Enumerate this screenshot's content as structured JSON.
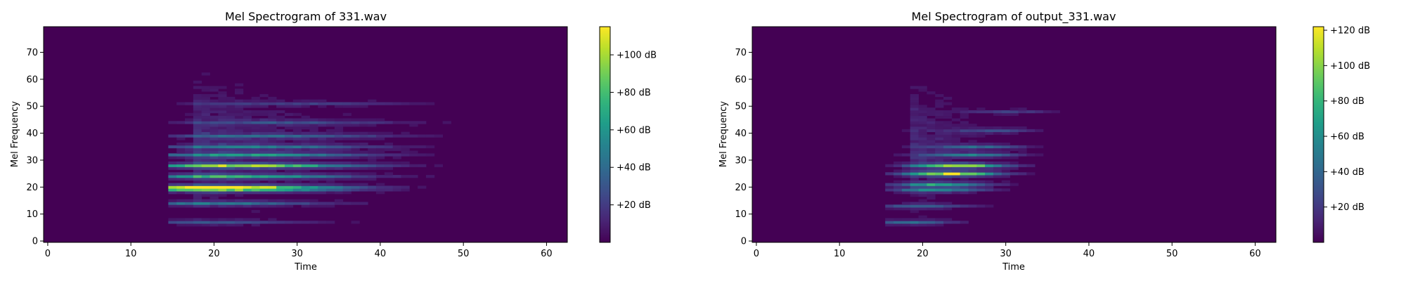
{
  "chart_data": [
    {
      "type": "heatmap",
      "title": "Mel Spectrogram of 331.wav",
      "xlabel": "Time",
      "ylabel": "Mel Frequency",
      "xlim": [
        -0.5,
        62.5
      ],
      "ylim": [
        -0.5,
        79.5
      ],
      "x_ticks": [
        0,
        10,
        20,
        30,
        40,
        50,
        60
      ],
      "y_ticks": [
        0,
        10,
        20,
        30,
        40,
        50,
        60,
        70
      ],
      "colorbar": {
        "colormap": "viridis",
        "range": [
          0,
          115
        ],
        "ticks": [
          20,
          40,
          60,
          80,
          100
        ],
        "tick_labels": [
          "+20 dB",
          "+40 dB",
          "+60 dB",
          "+80 dB",
          "+100 dB"
        ]
      },
      "onset_time": 18,
      "end_time": 52,
      "harmonics": [
        {
          "mel": 7,
          "level_db": 30
        },
        {
          "mel": 14,
          "level_db": 45
        },
        {
          "mel": 19,
          "level_db": 70
        },
        {
          "mel": 20,
          "level_db": 112
        },
        {
          "mel": 24,
          "level_db": 78
        },
        {
          "mel": 28,
          "level_db": 100
        },
        {
          "mel": 32,
          "level_db": 60
        },
        {
          "mel": 35,
          "level_db": 45
        },
        {
          "mel": 39,
          "level_db": 35
        },
        {
          "mel": 44,
          "level_db": 25
        },
        {
          "mel": 51,
          "level_db": 18
        }
      ]
    },
    {
      "type": "heatmap",
      "title": "Mel Spectrogram of output_331.wav",
      "xlabel": "Time",
      "ylabel": "Mel Frequency",
      "xlim": [
        -0.5,
        62.5
      ],
      "ylim": [
        -0.5,
        79.5
      ],
      "x_ticks": [
        0,
        10,
        20,
        30,
        40,
        50,
        60
      ],
      "y_ticks": [
        0,
        10,
        20,
        30,
        40,
        50,
        60,
        70
      ],
      "colorbar": {
        "colormap": "viridis",
        "range": [
          0,
          122
        ],
        "ticks": [
          20,
          40,
          60,
          80,
          100,
          120
        ],
        "tick_labels": [
          "+20 dB",
          "+40 dB",
          "+60 dB",
          "+80 dB",
          "+100 dB",
          "+120 dB"
        ]
      },
      "onset_time": 19,
      "end_time": 33,
      "harmonics": [
        {
          "mel": 7,
          "level_db": 45
        },
        {
          "mel": 13,
          "level_db": 40
        },
        {
          "mel": 19,
          "level_db": 60
        },
        {
          "mel": 21,
          "level_db": 75
        },
        {
          "mel": 25,
          "level_db": 118
        },
        {
          "mel": 28,
          "level_db": 110
        },
        {
          "mel": 32,
          "level_db": 55
        },
        {
          "mel": 35,
          "level_db": 40
        },
        {
          "mel": 41,
          "level_db": 25
        },
        {
          "mel": 48,
          "level_db": 20
        }
      ]
    }
  ]
}
